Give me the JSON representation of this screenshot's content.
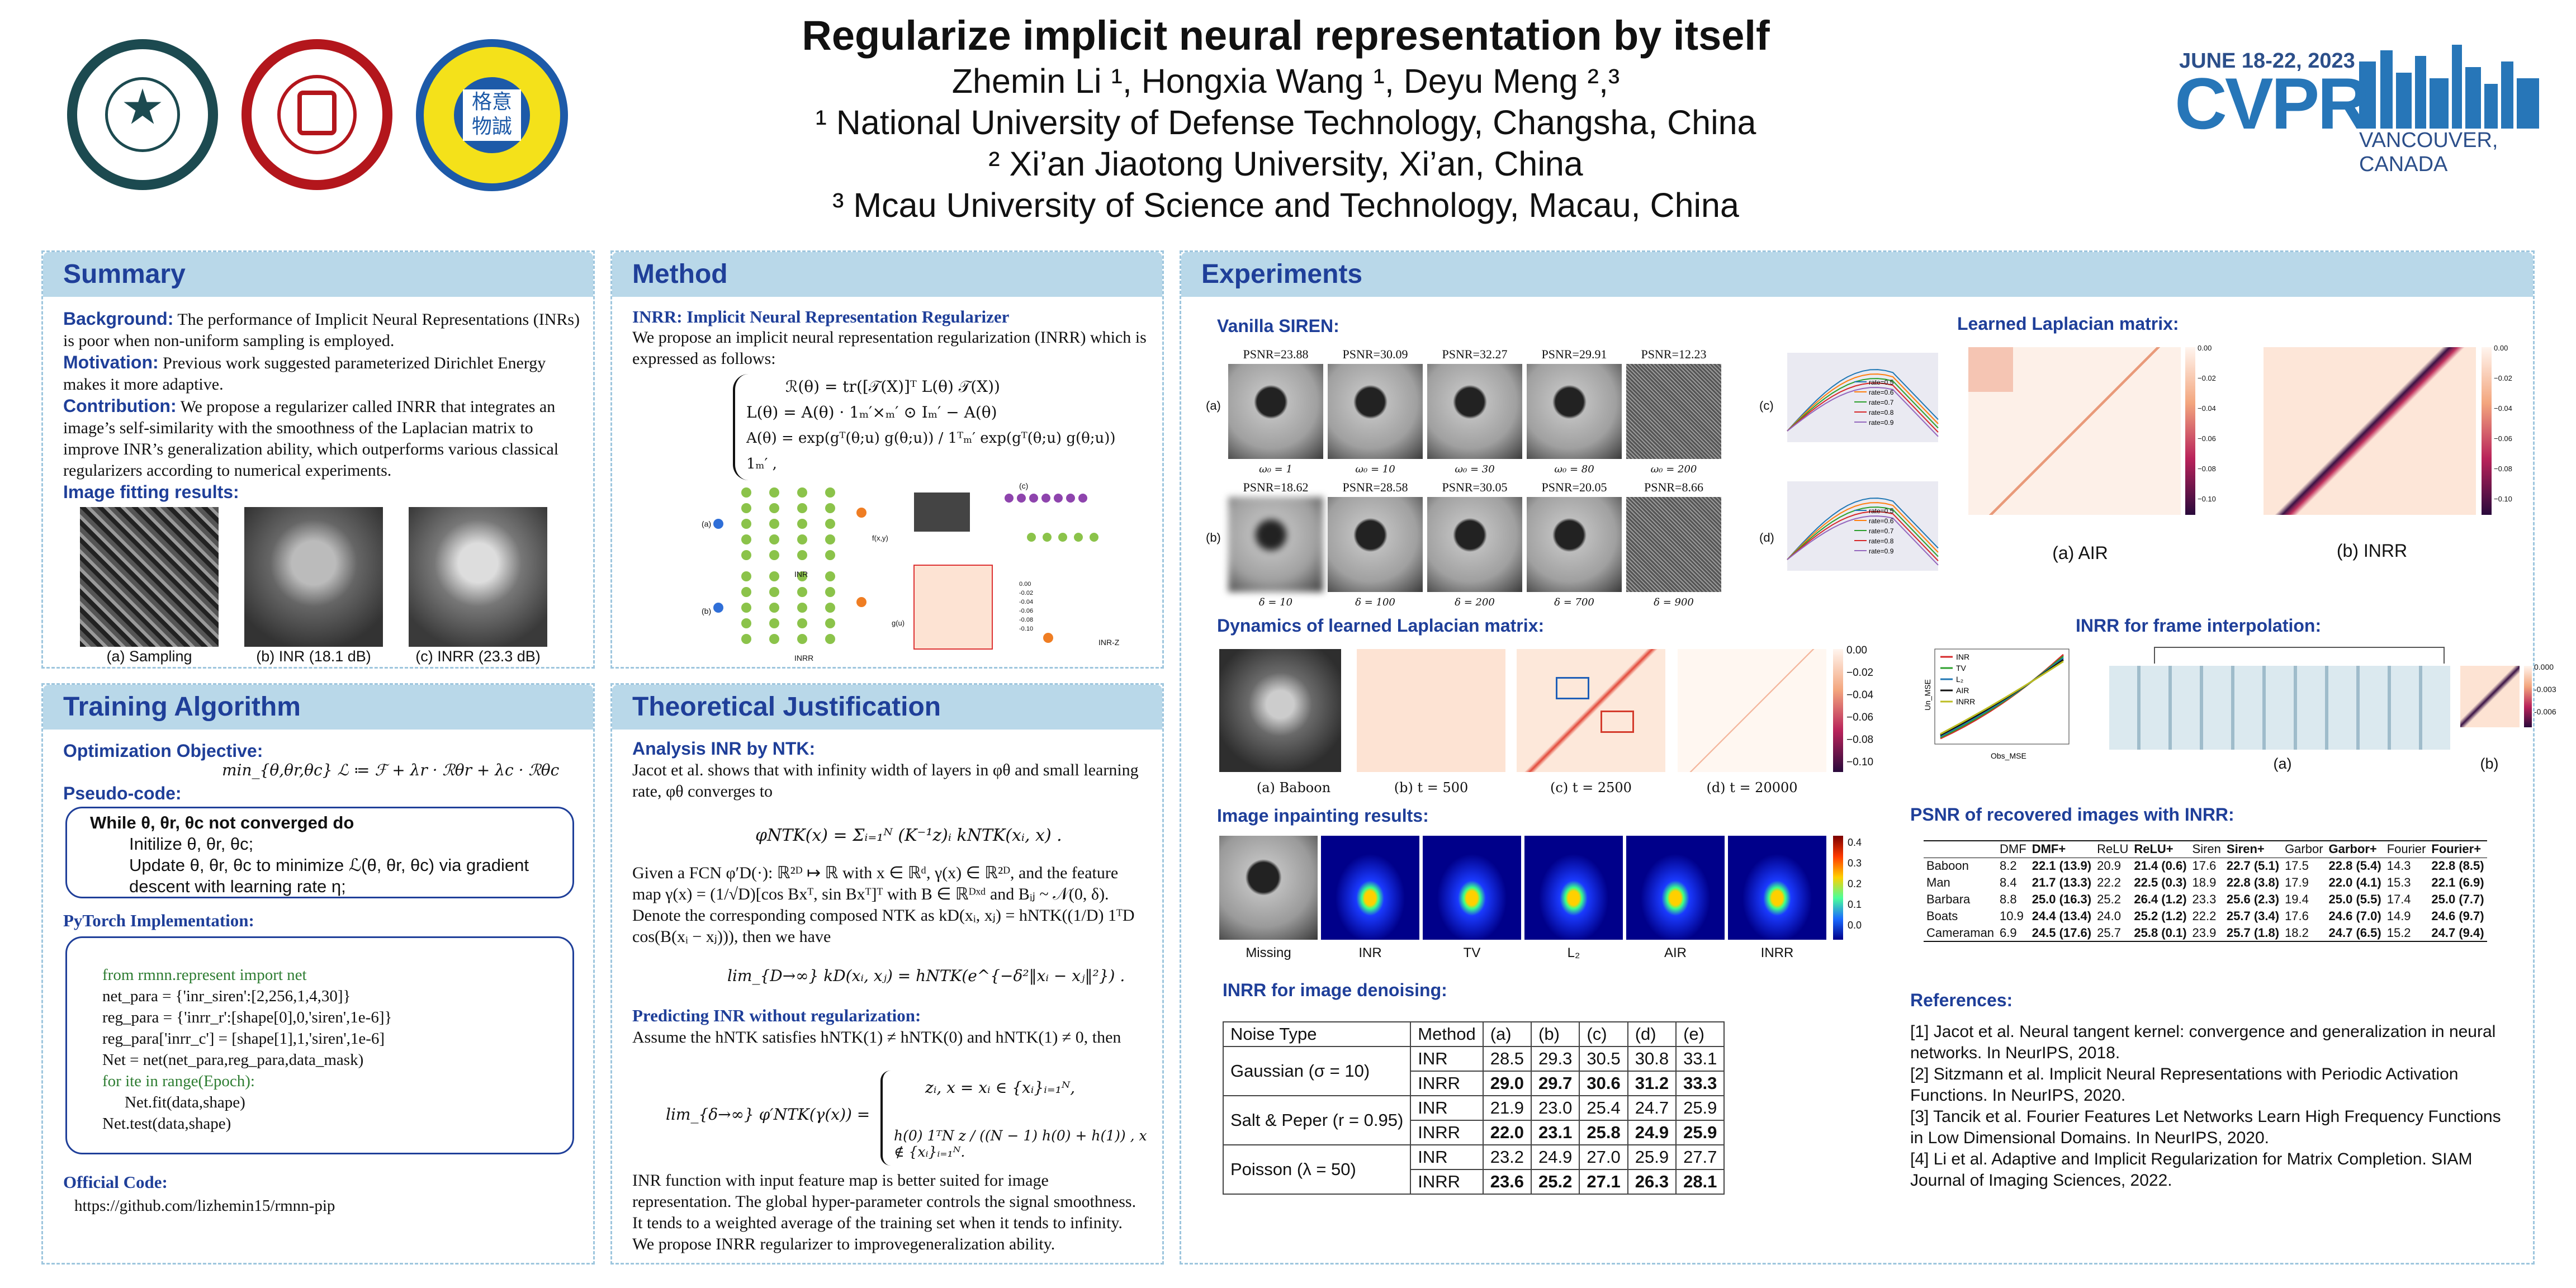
{
  "header": {
    "title": "Regularize implicit neural representation by itself",
    "authors": "Zhemin Li ¹, Hongxia Wang ¹, Deyu Meng ²,³",
    "aff1": "¹ National University of Defense Technology, Changsha, China",
    "aff2": "² Xi’an Jiaotong University, Xi’an, China",
    "aff3": "³ Mcau University of Science and Technology, Macau, China",
    "conf_date": "JUNE 18-22, 2023",
    "conf_name": "CVPR",
    "conf_place": "VANCOUVER, CANADA",
    "logo3_text": "格意\n物誠"
  },
  "summary": {
    "heading": "Summary",
    "bg_label": "Background:",
    "bg_text": "The performance of Implicit Neural Representations (INRs) is poor when non-uniform sampling is employed.",
    "mot_label": "Motivation:",
    "mot_text": "Previous work suggested parameterized Dirichlet Energy makes it more adaptive.",
    "con_label": "Contribution:",
    "con_text": "We propose a regularizer called INRR that integrates an image’s self-similarity with the smoothness of the Laplacian matrix to improve INR’s generalization ability, which outperforms various classical regularizers according to numerical experiments.",
    "fit_label": "Image fitting results:",
    "cap_a": "(a) Sampling",
    "cap_b": "(b) INR (18.1 dB)",
    "cap_c": "(c) INRR (23.3 dB)"
  },
  "training": {
    "heading": "Training Algorithm",
    "obj_label": "Optimization Objective:",
    "obj_math": "min_{θ,θr,θc} ℒ ≔ ℱ + λr · ℛθr + λc · ℛθc",
    "pseudo_label": "Pseudo-code:",
    "p1": "While θ, θr, θc not converged do",
    "p2": "Initilize θ, θr, θc;",
    "p3": "Update θ, θr, θc to minimize ℒ(θ, θr, θc) via gradient",
    "p4": "descent with learning rate η;",
    "torch_label": "PyTorch Implementation:",
    "c1": "from rmnn.represent  import net",
    "c2": "net_para = {'inr_siren':[2,256,1,4,30]}",
    "c3": "reg_para = {'inrr_r':[shape[0],0,'siren',1e-6]}",
    "c4": "reg_para['inrr_c'] = [shape[1],1,'siren',1e-6]",
    "c5": "Net = net(net_para,reg_para,data_mask)",
    "c6": "for ite in range(Epoch):",
    "c7": "Net.fit(data,shape)",
    "c8": "Net.test(data,shape)",
    "code_label": "Official Code:",
    "code_url": "https://github.com/lizhemin15/rmnn-pip"
  },
  "method": {
    "heading": "Method",
    "inrr_label": "INRR:  Implicit Neural Representation Regularizer",
    "intro": "We propose an implicit neural representation regularization (INRR) which is expressed as follows:",
    "eq1": "ℛ(θ) = tr([𝒯(X)]ᵀ L(θ) 𝒯(X))",
    "eq2": "L(θ) = A(θ) · 1ₘ′×ₘ′ ⊙ Iₘ′ − A(θ)",
    "eq3": "A(θ) = exp(gᵀ(θ;u) g(θ;u)) / 1ᵀₘ′ exp(gᵀ(θ;u) g(θ;u)) 1ₘ′ ,",
    "diag_inr": "INR",
    "diag_inrr": "INRR",
    "diag_inrz": "INR-Z",
    "diag_a": "(a)",
    "diag_b": "(b)",
    "diag_c": "(c)",
    "diag_fx": "f(x,y)",
    "diag_gu": "g(u)",
    "diag_ticks": [
      "0.00",
      "-0.02",
      "-0.04",
      "-0.06",
      "-0.08",
      "-0.10"
    ]
  },
  "theory": {
    "heading": "Theoretical Justification",
    "ntk_label": "Analysis INR by NTK:",
    "t1": "Jacot et al. shows that with infinity width of layers in φθ and small learning rate, φθ converges to",
    "eq_ntk": "φNTK(x) = Σᵢ₌₁ᴺ (K⁻¹z)ᵢ kNTK(xᵢ, x) .",
    "t2": "Given a FCN φ′D(·): ℝ²ᴰ ↦ ℝ with x ∈ ℝᵈ, γ(x) ∈ ℝ²ᴰ, and the feature map γ(x) = (1/√D)[cos Bxᵀ, sin Bxᵀ]ᵀ with B ∈ ℝᴰˣᵈ and Bᵢⱼ ~ 𝒩(0, δ). Denote the corresponding composed NTK as kD(xᵢ, xⱼ) = hNTK((1/D) 1ᵀD cos(B(xᵢ − xⱼ))), then we have",
    "eq_lim": "lim_{D→∞} kD(xᵢ, xⱼ) = hNTK(e^{−δ²‖xᵢ − xⱼ‖²}) .",
    "pred_label": "Predicting INR without regularization:",
    "t3": "Assume the hNTK satisfies hNTK(1) ≠ hNTK(0) and hNTK(1) ≠ 0, then",
    "eq_case_lhs": "lim_{δ→∞} φ′NTK(γ(x)) =",
    "eq_case1": "zᵢ, x = xᵢ ∈ {xᵢ}ᵢ₌₁ᴺ,",
    "eq_case2": "h(0) 1ᵀN z / ((N − 1) h(0) + h(1)) , x ∉ {xᵢ}ᵢ₌₁ᴺ.",
    "t4": "INR function with input feature map is better suited for image representation. The global hyper-parameter controls the signal smoothness. It tends to a weighted average of the training set when it tends to infinity. We propose INRR regularizer to improvegeneralization ability."
  },
  "experiments": {
    "heading": "Experiments",
    "siren_label": "Vanilla SIREN:",
    "psnr_top": [
      "PSNR=23.88",
      "PSNR=30.09",
      "PSNR=32.27",
      "PSNR=29.91",
      "PSNR=12.23"
    ],
    "omega": [
      "ω₀ = 1",
      "ω₀ = 10",
      "ω₀ = 30",
      "ω₀ = 80",
      "ω₀ = 200"
    ],
    "psnr_bot": [
      "PSNR=18.62",
      "PSNR=28.58",
      "PSNR=30.05",
      "PSNR=20.05",
      "PSNR=8.66"
    ],
    "delta": [
      "δ = 10",
      "δ = 100",
      "δ = 200",
      "δ = 700",
      "δ = 900"
    ],
    "row_a": "(a)",
    "row_b": "(b)",
    "row_c": "(c)",
    "row_d": "(d)",
    "rates": [
      "rate=0.5",
      "rate=0.6",
      "rate=0.7",
      "rate=0.8",
      "rate=0.9"
    ],
    "lap_label": "Learned Laplacian matrix:",
    "lap_a": "(a) AIR",
    "lap_b": "(b) INRR",
    "lap_ticks": [
      "0.00",
      "−0.02",
      "−0.04",
      "−0.06",
      "−0.08",
      "−0.10"
    ],
    "dyn_label": "Dynamics of learned Laplacian matrix:",
    "dyn_caps": [
      "(a) Baboon",
      "(b) t = 500",
      "(c) t = 2500",
      "(d) t = 20000"
    ],
    "dyn_ticks": [
      "0.00",
      "−0.02",
      "−0.04",
      "−0.06",
      "−0.08",
      "−0.10"
    ],
    "frame_label": "INRR for frame interpolation:",
    "frame_legend": [
      "INR",
      "TV",
      "L₂",
      "AIR",
      "INRR"
    ],
    "frame_colors": [
      "#d62728",
      "#2ca02c",
      "#1f77b4",
      "#111111",
      "#bcbd22"
    ],
    "frame_a": "(a)",
    "frame_b": "(b)",
    "frame_x": "Obs_MSE",
    "frame_y": "Un_MSE",
    "frame_ticks": [
      "0.000",
      "-0.003",
      "-0.006"
    ],
    "inpaint_label": "Image inpainting results:",
    "inpaint_caps": [
      "Missing",
      "INR",
      "TV",
      "L₂",
      "AIR",
      "INRR"
    ],
    "inpaint_ticks": [
      "0.4",
      "0.3",
      "0.2",
      "0.1",
      "0.0"
    ],
    "denoise_label": "INRR for image denoising:",
    "denoise": {
      "headers": [
        "Noise Type",
        "Method",
        "(a)",
        "(b)",
        "(c)",
        "(d)",
        "(e)"
      ],
      "rows": [
        {
          "noise": "Gaussian (σ = 10)",
          "inr": [
            "28.5",
            "29.3",
            "30.5",
            "30.8",
            "33.1"
          ],
          "inrr": [
            "29.0",
            "29.7",
            "30.6",
            "31.2",
            "33.3"
          ]
        },
        {
          "noise": "Salt & Peper (r = 0.95)",
          "inr": [
            "21.9",
            "23.0",
            "25.4",
            "24.7",
            "25.9"
          ],
          "inrr": [
            "22.0",
            "23.1",
            "25.8",
            "24.9",
            "25.9"
          ]
        },
        {
          "noise": "Poisson (λ = 50)",
          "inr": [
            "23.2",
            "24.9",
            "27.0",
            "25.9",
            "27.7"
          ],
          "inrr": [
            "23.6",
            "25.2",
            "27.1",
            "26.3",
            "28.1"
          ]
        }
      ],
      "m_inr": "INR",
      "m_inrr": "INRR"
    },
    "psnr_label": "PSNR of recovered images with INRR:",
    "psnr_table": {
      "headers": [
        "",
        "DMF",
        "DMF+",
        "ReLU",
        "ReLU+",
        "Siren",
        "Siren+",
        "Garbor",
        "Garbor+",
        "Fourier",
        "Fourier+"
      ],
      "rows": [
        [
          "Baboon",
          "8.2",
          "22.1 (13.9)",
          "20.9",
          "21.4 (0.6)",
          "17.6",
          "22.7 (5.1)",
          "17.5",
          "22.8 (5.4)",
          "14.3",
          "22.8 (8.5)"
        ],
        [
          "Man",
          "8.4",
          "21.7 (13.3)",
          "22.2",
          "22.5 (0.3)",
          "18.9",
          "22.8 (3.8)",
          "17.9",
          "22.0 (4.1)",
          "15.3",
          "22.1 (6.9)"
        ],
        [
          "Barbara",
          "8.8",
          "25.0 (16.3)",
          "25.2",
          "26.4 (1.2)",
          "23.3",
          "25.6 (2.3)",
          "19.4",
          "25.0 (5.5)",
          "17.4",
          "25.0 (7.7)"
        ],
        [
          "Boats",
          "10.9",
          "24.4 (13.4)",
          "24.0",
          "25.2 (1.2)",
          "22.2",
          "25.7 (3.4)",
          "17.6",
          "24.6 (7.0)",
          "14.9",
          "24.6 (9.7)"
        ],
        [
          "Cameraman",
          "6.9",
          "24.5 (17.6)",
          "25.7",
          "25.8 (0.1)",
          "23.9",
          "25.7 (1.8)",
          "18.2",
          "24.7 (6.5)",
          "15.2",
          "24.7 (9.4)"
        ]
      ]
    },
    "refs_label": "References:",
    "refs": [
      "[1] Jacot et al. Neural tangent kernel: convergence and generalization in neural networks. In NeurIPS, 2018.",
      "[2] Sitzmann et al. Implicit Neural Representations with Periodic Activation Functions. In NeurIPS, 2020.",
      "[3] Tancik et al. Fourier Features Let Networks Learn High Frequency Functions in Low Dimensional Domains. In NeurIPS, 2020.",
      "[4] Li et al. Adaptive and Implicit Regularization for Matrix Completion. SIAM Journal of Imaging Sciences, 2022."
    ]
  }
}
